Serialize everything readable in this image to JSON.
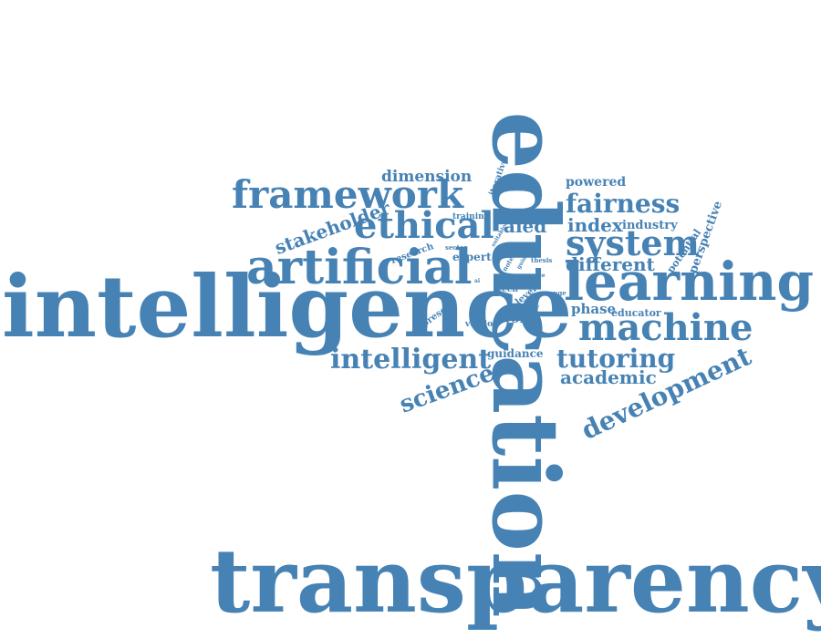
{
  "color": "#4682b4",
  "words": [
    {
      "text": "transparency",
      "rotation": 0
    },
    {
      "text": "education",
      "rotation": 90
    },
    {
      "text": "intelligence",
      "rotation": 0
    },
    {
      "text": "learning",
      "rotation": 0
    },
    {
      "text": "artificial",
      "rotation": 0
    },
    {
      "text": "machine",
      "rotation": 0
    },
    {
      "text": "framework",
      "rotation": 0
    },
    {
      "text": "ethical",
      "rotation": 0
    },
    {
      "text": "system",
      "rotation": 0
    },
    {
      "text": "fairness",
      "rotation": 0
    },
    {
      "text": "intelligent",
      "rotation": 0
    },
    {
      "text": "tutoring",
      "rotation": 0
    },
    {
      "text": "development",
      "rotation": -25
    },
    {
      "text": "science",
      "rotation": -20
    },
    {
      "text": "stakeholder",
      "rotation": -20
    },
    {
      "text": "academic",
      "rotation": 0
    },
    {
      "text": "different",
      "rotation": 0
    },
    {
      "text": "index",
      "rotation": 0
    },
    {
      "text": "aied",
      "rotation": 0
    },
    {
      "text": "dimension",
      "rotation": 0
    },
    {
      "text": "powered",
      "rotation": 0
    },
    {
      "text": "industry",
      "rotation": 0
    },
    {
      "text": "perspective",
      "rotation": -70
    },
    {
      "text": "potential",
      "rotation": -55
    },
    {
      "text": "phase",
      "rotation": 0
    },
    {
      "text": "educator",
      "rotation": 0
    },
    {
      "text": "world",
      "rotation": 0
    },
    {
      "text": "guidance",
      "rotation": 0
    },
    {
      "text": "expert",
      "rotation": 0
    },
    {
      "text": "research",
      "rotation": -20
    },
    {
      "text": "present",
      "rotation": -35
    },
    {
      "text": "version",
      "rotation": 0
    },
    {
      "text": "level",
      "rotation": -40
    },
    {
      "text": "training",
      "rotation": 0
    },
    {
      "text": "iterative",
      "rotation": -70
    },
    {
      "text": "tech",
      "rotation": 0
    },
    {
      "text": "sector",
      "rotation": 0
    },
    {
      "text": "thesis",
      "rotation": 0
    },
    {
      "text": "range",
      "rotation": 0
    },
    {
      "text": "safety",
      "rotation": 0
    },
    {
      "text": "note",
      "rotation": -60
    },
    {
      "text": "work",
      "rotation": 0
    },
    {
      "text": "guide",
      "rotation": -60
    },
    {
      "text": "suitable",
      "rotation": -60
    },
    {
      "text": "tool",
      "rotation": 0
    },
    {
      "text": "use",
      "rotation": 0
    },
    {
      "text": "ai",
      "rotation": 0
    }
  ]
}
